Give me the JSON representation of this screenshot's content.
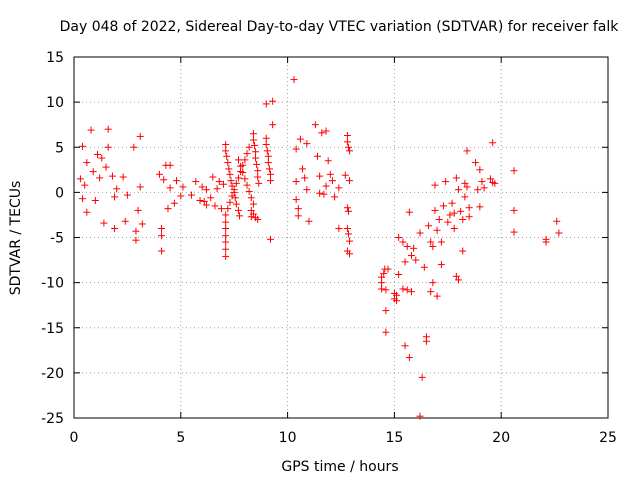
{
  "chart_data": {
    "type": "scatter",
    "title": "Day 048 of 2022, Sidereal Day-to-day VTEC variation (SDTVAR) for receiver falk",
    "xlabel": "GPS time / hours",
    "ylabel": "SDTVAR / TECUs",
    "xlim": [
      0,
      25
    ],
    "ylim": [
      -25,
      15
    ],
    "xticks": [
      0,
      5,
      10,
      15,
      20,
      25
    ],
    "yticks": [
      15,
      10,
      5,
      0,
      -5,
      -10,
      -15,
      -20,
      -25
    ],
    "xtick_labels": [
      "0",
      "5",
      "10",
      "15",
      "20",
      "25"
    ],
    "ytick_labels": [
      "15",
      "10",
      "5",
      "0",
      "-5",
      "-10",
      "-15",
      "-20",
      "-25"
    ],
    "grid": true,
    "marker": "plus",
    "color": "#ff0000",
    "series": [
      {
        "name": "SDTVAR",
        "points": [
          [
            0.4,
            5.1
          ],
          [
            0.6,
            3.3
          ],
          [
            0.8,
            6.9
          ],
          [
            0.3,
            1.5
          ],
          [
            0.5,
            0.8
          ],
          [
            0.4,
            -0.7
          ],
          [
            0.6,
            -2.2
          ],
          [
            0.9,
            2.3
          ],
          [
            1.1,
            4.2
          ],
          [
            1.0,
            -0.9
          ],
          [
            1.3,
            3.8
          ],
          [
            1.2,
            1.6
          ],
          [
            1.4,
            -3.4
          ],
          [
            1.5,
            2.8
          ],
          [
            1.6,
            7.0
          ],
          [
            1.6,
            5.0
          ],
          [
            1.8,
            1.8
          ],
          [
            1.9,
            -0.5
          ],
          [
            1.9,
            -4.0
          ],
          [
            2.0,
            0.4
          ],
          [
            2.3,
            1.7
          ],
          [
            2.4,
            -3.2
          ],
          [
            2.5,
            -0.3
          ],
          [
            2.8,
            5.0
          ],
          [
            2.9,
            -5.3
          ],
          [
            2.9,
            -4.3
          ],
          [
            3.1,
            6.2
          ],
          [
            3.1,
            0.6
          ],
          [
            3.2,
            -3.5
          ],
          [
            3.0,
            -2.0
          ],
          [
            4.0,
            2.0
          ],
          [
            4.1,
            -4.0
          ],
          [
            4.1,
            -4.8
          ],
          [
            4.1,
            -6.5
          ],
          [
            4.2,
            1.4
          ],
          [
            4.3,
            3.0
          ],
          [
            4.4,
            -1.8
          ],
          [
            4.5,
            3.0
          ],
          [
            4.5,
            0.5
          ],
          [
            4.7,
            -1.2
          ],
          [
            4.8,
            1.3
          ],
          [
            5.0,
            -0.4
          ],
          [
            5.1,
            0.6
          ],
          [
            5.5,
            -0.3
          ],
          [
            5.7,
            1.2
          ],
          [
            5.9,
            -0.9
          ],
          [
            6.0,
            0.6
          ],
          [
            6.1,
            -1.0
          ],
          [
            6.2,
            0.3
          ],
          [
            6.2,
            -1.4
          ],
          [
            6.4,
            -0.6
          ],
          [
            6.5,
            1.7
          ],
          [
            6.6,
            -1.5
          ],
          [
            6.7,
            0.4
          ],
          [
            6.8,
            1.2
          ],
          [
            6.9,
            -1.8
          ],
          [
            7.0,
            0.9
          ],
          [
            7.1,
            5.3
          ],
          [
            7.1,
            4.6
          ],
          [
            7.15,
            4.0
          ],
          [
            7.2,
            3.3
          ],
          [
            7.25,
            2.6
          ],
          [
            7.3,
            2.0
          ],
          [
            7.35,
            1.3
          ],
          [
            7.4,
            0.7
          ],
          [
            7.5,
            0.0
          ],
          [
            7.55,
            -0.6
          ],
          [
            7.6,
            -1.3
          ],
          [
            7.7,
            -2.0
          ],
          [
            7.75,
            -2.6
          ],
          [
            7.1,
            -2.5
          ],
          [
            7.1,
            -3.3
          ],
          [
            7.1,
            -4.0
          ],
          [
            7.1,
            -4.8
          ],
          [
            7.1,
            -5.5
          ],
          [
            7.1,
            -6.3
          ],
          [
            7.1,
            -7.1
          ],
          [
            7.2,
            -1.8
          ],
          [
            7.3,
            -1.1
          ],
          [
            7.4,
            -0.4
          ],
          [
            7.5,
            0.3
          ],
          [
            7.6,
            1.0
          ],
          [
            7.7,
            1.6
          ],
          [
            7.8,
            2.3
          ],
          [
            7.9,
            3.0
          ],
          [
            8.0,
            3.6
          ],
          [
            8.1,
            4.3
          ],
          [
            8.2,
            5.0
          ],
          [
            7.7,
            3.6
          ],
          [
            7.8,
            2.9
          ],
          [
            7.9,
            2.2
          ],
          [
            8.0,
            1.5
          ],
          [
            8.1,
            0.8
          ],
          [
            8.2,
            0.1
          ],
          [
            8.3,
            -0.6
          ],
          [
            8.4,
            -1.3
          ],
          [
            8.4,
            6.5
          ],
          [
            8.4,
            5.8
          ],
          [
            8.45,
            5.2
          ],
          [
            8.5,
            4.5
          ],
          [
            8.5,
            3.8
          ],
          [
            8.55,
            3.1
          ],
          [
            8.6,
            2.4
          ],
          [
            8.6,
            1.7
          ],
          [
            8.65,
            1.0
          ],
          [
            8.3,
            -2.0
          ],
          [
            8.3,
            -2.7
          ],
          [
            8.4,
            -2.4
          ],
          [
            8.5,
            -2.8
          ],
          [
            8.6,
            -3.0
          ],
          [
            9.0,
            6.0
          ],
          [
            9.0,
            5.3
          ],
          [
            9.05,
            4.6
          ],
          [
            9.1,
            4.0
          ],
          [
            9.1,
            3.3
          ],
          [
            9.15,
            2.6
          ],
          [
            9.2,
            2.0
          ],
          [
            9.2,
            1.3
          ],
          [
            9.0,
            9.8
          ],
          [
            9.3,
            10.1
          ],
          [
            9.3,
            7.5
          ],
          [
            9.2,
            -5.2
          ],
          [
            10.3,
            12.5
          ],
          [
            10.4,
            4.8
          ],
          [
            10.4,
            1.2
          ],
          [
            10.4,
            -0.8
          ],
          [
            10.5,
            -1.8
          ],
          [
            10.5,
            -2.6
          ],
          [
            10.6,
            5.9
          ],
          [
            10.7,
            2.6
          ],
          [
            10.8,
            1.6
          ],
          [
            10.9,
            5.4
          ],
          [
            10.9,
            0.3
          ],
          [
            11.0,
            -3.2
          ],
          [
            11.3,
            7.5
          ],
          [
            11.4,
            4.0
          ],
          [
            11.5,
            1.8
          ],
          [
            11.5,
            -0.1
          ],
          [
            11.6,
            6.6
          ],
          [
            11.7,
            -0.2
          ],
          [
            11.8,
            6.8
          ],
          [
            11.8,
            0.7
          ],
          [
            11.9,
            3.5
          ],
          [
            12.0,
            2.0
          ],
          [
            12.1,
            1.3
          ],
          [
            12.2,
            -0.5
          ],
          [
            12.4,
            -4.0
          ],
          [
            12.4,
            0.5
          ],
          [
            12.8,
            6.3
          ],
          [
            12.8,
            5.6
          ],
          [
            12.85,
            5.0
          ],
          [
            12.9,
            4.6
          ],
          [
            12.8,
            -1.7
          ],
          [
            12.85,
            -2.1
          ],
          [
            12.8,
            -4.0
          ],
          [
            12.85,
            -4.6
          ],
          [
            12.9,
            -5.4
          ],
          [
            12.8,
            -6.5
          ],
          [
            12.9,
            -6.8
          ],
          [
            12.7,
            1.9
          ],
          [
            12.9,
            1.3
          ],
          [
            14.4,
            -9.4
          ],
          [
            14.4,
            -10.0
          ],
          [
            14.4,
            -10.7
          ],
          [
            14.5,
            -9.0
          ],
          [
            14.55,
            -8.5
          ],
          [
            14.6,
            -10.8
          ],
          [
            14.6,
            -13.1
          ],
          [
            14.6,
            -15.5
          ],
          [
            14.7,
            -8.5
          ],
          [
            15.0,
            -11.2
          ],
          [
            15.0,
            -11.8
          ],
          [
            15.1,
            -11.4
          ],
          [
            15.1,
            -12.0
          ],
          [
            15.2,
            -9.1
          ],
          [
            15.2,
            -5.0
          ],
          [
            15.4,
            -5.5
          ],
          [
            15.4,
            -10.7
          ],
          [
            15.5,
            -7.7
          ],
          [
            15.5,
            -17.0
          ],
          [
            15.6,
            -10.8
          ],
          [
            15.6,
            -6.0
          ],
          [
            15.7,
            -2.2
          ],
          [
            15.7,
            -18.3
          ],
          [
            15.8,
            -11.0
          ],
          [
            15.8,
            -7.0
          ],
          [
            15.9,
            -6.2
          ],
          [
            16.0,
            -7.5
          ],
          [
            16.2,
            -24.8
          ],
          [
            16.2,
            -4.5
          ],
          [
            16.3,
            -20.5
          ],
          [
            16.4,
            -8.3
          ],
          [
            16.5,
            -16.5
          ],
          [
            16.5,
            -16.0
          ],
          [
            16.6,
            -3.7
          ],
          [
            16.7,
            -11.0
          ],
          [
            16.7,
            -5.5
          ],
          [
            16.8,
            -10.0
          ],
          [
            16.8,
            -6.0
          ],
          [
            16.9,
            0.8
          ],
          [
            16.9,
            -2.0
          ],
          [
            17.0,
            -4.2
          ],
          [
            17.0,
            -11.5
          ],
          [
            17.1,
            -3.0
          ],
          [
            17.2,
            -5.5
          ],
          [
            17.2,
            -8.0
          ],
          [
            17.3,
            -1.5
          ],
          [
            17.4,
            1.2
          ],
          [
            17.5,
            -3.3
          ],
          [
            17.6,
            -2.5
          ],
          [
            17.7,
            -1.2
          ],
          [
            17.8,
            -2.3
          ],
          [
            17.8,
            -4.0
          ],
          [
            17.9,
            1.6
          ],
          [
            17.9,
            -9.3
          ],
          [
            18.0,
            0.3
          ],
          [
            18.0,
            -9.7
          ],
          [
            18.1,
            -2.1
          ],
          [
            18.2,
            -3.0
          ],
          [
            18.2,
            -6.5
          ],
          [
            18.3,
            1.0
          ],
          [
            18.3,
            -0.5
          ],
          [
            18.4,
            4.6
          ],
          [
            18.4,
            0.6
          ],
          [
            18.5,
            -1.7
          ],
          [
            18.5,
            -2.7
          ],
          [
            18.8,
            3.3
          ],
          [
            18.9,
            0.3
          ],
          [
            19.0,
            2.5
          ],
          [
            19.0,
            -1.6
          ],
          [
            19.1,
            1.2
          ],
          [
            19.2,
            0.5
          ],
          [
            19.5,
            1.5
          ],
          [
            19.6,
            1.1
          ],
          [
            19.7,
            1.0
          ],
          [
            19.6,
            5.5
          ],
          [
            20.6,
            2.4
          ],
          [
            20.6,
            -2.0
          ],
          [
            20.6,
            -4.4
          ],
          [
            22.1,
            -5.5
          ],
          [
            22.1,
            -5.2
          ],
          [
            22.6,
            -3.2
          ],
          [
            22.7,
            -4.5
          ]
        ]
      }
    ]
  }
}
